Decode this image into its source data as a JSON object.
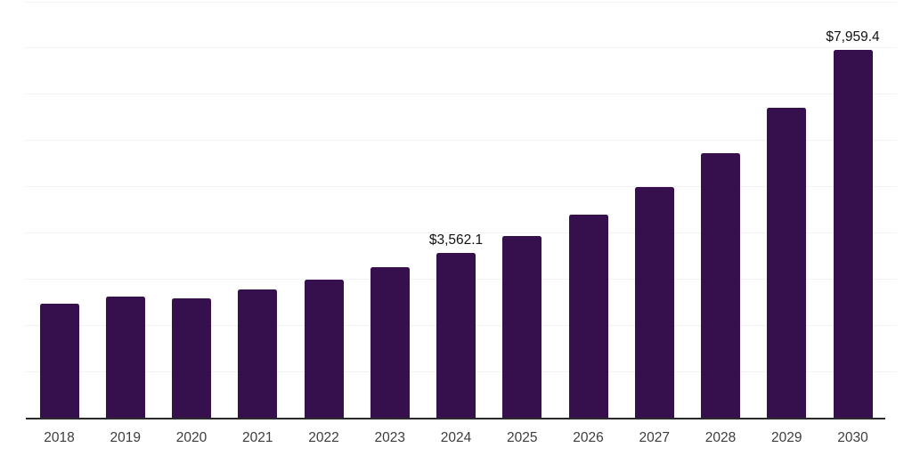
{
  "chart_data": {
    "type": "bar",
    "title": "",
    "xlabel": "",
    "ylabel": "",
    "categories": [
      "2018",
      "2019",
      "2020",
      "2021",
      "2022",
      "2023",
      "2024",
      "2025",
      "2026",
      "2027",
      "2028",
      "2029",
      "2030"
    ],
    "values": [
      2460,
      2610,
      2575,
      2765,
      2980,
      3255,
      3562.1,
      3920,
      4385,
      4985,
      5715,
      6700,
      7959.4
    ],
    "point_labels": {
      "2024": "$3,562.1",
      "2030": "$7,959.4"
    },
    "ylim": [
      0,
      9000
    ],
    "grid_step": 1000,
    "grid": true,
    "legend": false,
    "y_axis_tick_labels_visible": false,
    "colors": {
      "bar": "#36104d",
      "axis_line": "#2a2a2a",
      "gridline": "#f2f2f2",
      "point_label": "#111111",
      "tick_label": "#3d3d3d",
      "background": "#ffffff"
    }
  }
}
